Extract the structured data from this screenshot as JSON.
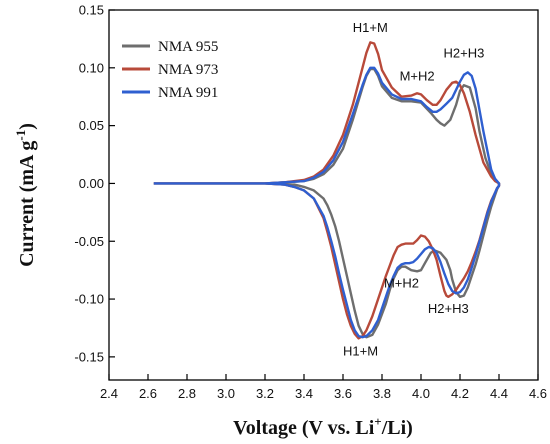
{
  "chart_data": {
    "type": "line",
    "xlabel": "Voltage (V vs. Li",
    "xlabel_sup": "+",
    "xlabel_tail": "/Li)",
    "ylabel": "Current (mA g",
    "ylabel_sup": "-1",
    "ylabel_tail": ")",
    "xlim": [
      2.4,
      4.6
    ],
    "ylim": [
      -0.17,
      0.15
    ],
    "x_ticks": [
      "2.4",
      "2.6",
      "2.8",
      "3.0",
      "3.2",
      "3.4",
      "3.6",
      "3.8",
      "4.0",
      "4.2",
      "4.4",
      "4.6"
    ],
    "y_ticks": [
      "0.15",
      "0.10",
      "0.05",
      "0.00",
      "-0.05",
      "-0.10",
      "-0.15"
    ],
    "grid": false,
    "legend_position": "top-left",
    "annotations": [
      {
        "text": "H1+M",
        "x": 3.74,
        "y": 0.131
      },
      {
        "text": "M+H2",
        "x": 3.98,
        "y": 0.089
      },
      {
        "text": "H2+H3",
        "x": 4.22,
        "y": 0.109
      },
      {
        "text": "M+H2",
        "x": 3.9,
        "y": -0.09
      },
      {
        "text": "H2+H3",
        "x": 4.14,
        "y": -0.112
      },
      {
        "text": "H1+M",
        "x": 3.69,
        "y": -0.149
      }
    ],
    "series": [
      {
        "name": "NMA 955",
        "color": "#6e6e6e",
        "x": [
          2.63,
          3.0,
          3.2,
          3.3,
          3.4,
          3.45,
          3.5,
          3.55,
          3.6,
          3.65,
          3.7,
          3.72,
          3.74,
          3.76,
          3.78,
          3.8,
          3.85,
          3.9,
          3.95,
          4.0,
          4.05,
          4.08,
          4.1,
          4.12,
          4.15,
          4.18,
          4.2,
          4.22,
          4.25,
          4.28,
          4.3,
          4.33,
          4.36,
          4.38,
          4.4,
          4.4,
          4.39,
          4.38,
          4.36,
          4.34,
          4.32,
          4.3,
          4.28,
          4.26,
          4.24,
          4.22,
          4.2,
          4.18,
          4.16,
          4.15,
          4.13,
          4.1,
          4.07,
          4.05,
          4.02,
          4.0,
          3.98,
          3.95,
          3.92,
          3.9,
          3.88,
          3.86,
          3.84,
          3.82,
          3.8,
          3.78,
          3.75,
          3.72,
          3.7,
          3.68,
          3.66,
          3.64,
          3.62,
          3.6,
          3.58,
          3.56,
          3.54,
          3.52,
          3.5,
          3.45,
          3.4,
          3.35,
          3.3,
          3.2,
          3.0,
          2.63
        ],
        "y": [
          0.0,
          0.0,
          0.0,
          0.001,
          0.002,
          0.004,
          0.008,
          0.016,
          0.03,
          0.055,
          0.083,
          0.093,
          0.099,
          0.099,
          0.093,
          0.084,
          0.074,
          0.071,
          0.071,
          0.07,
          0.061,
          0.055,
          0.052,
          0.05,
          0.055,
          0.068,
          0.08,
          0.085,
          0.083,
          0.065,
          0.045,
          0.022,
          0.008,
          0.003,
          0.0,
          -0.002,
          -0.005,
          -0.01,
          -0.02,
          -0.032,
          -0.045,
          -0.058,
          -0.07,
          -0.08,
          -0.09,
          -0.097,
          -0.098,
          -0.094,
          -0.083,
          -0.075,
          -0.066,
          -0.06,
          -0.058,
          -0.06,
          -0.069,
          -0.075,
          -0.076,
          -0.075,
          -0.072,
          -0.072,
          -0.075,
          -0.082,
          -0.092,
          -0.104,
          -0.113,
          -0.122,
          -0.131,
          -0.133,
          -0.13,
          -0.123,
          -0.11,
          -0.095,
          -0.08,
          -0.065,
          -0.05,
          -0.037,
          -0.027,
          -0.019,
          -0.013,
          -0.006,
          -0.003,
          -0.001,
          -0.001,
          0.0,
          0.0,
          0.0
        ]
      },
      {
        "name": "NMA 973",
        "color": "#b84a3a",
        "x": [
          2.63,
          3.0,
          3.2,
          3.3,
          3.4,
          3.45,
          3.5,
          3.55,
          3.6,
          3.65,
          3.7,
          3.72,
          3.74,
          3.76,
          3.78,
          3.8,
          3.85,
          3.9,
          3.95,
          3.98,
          4.0,
          4.03,
          4.06,
          4.08,
          4.1,
          4.13,
          4.16,
          4.18,
          4.2,
          4.22,
          4.25,
          4.28,
          4.32,
          4.36,
          4.38,
          4.4,
          4.4,
          4.39,
          4.38,
          4.36,
          4.34,
          4.32,
          4.3,
          4.28,
          4.26,
          4.24,
          4.22,
          4.2,
          4.18,
          4.16,
          4.14,
          4.13,
          4.12,
          4.1,
          4.08,
          4.06,
          4.04,
          4.02,
          4.0,
          3.98,
          3.96,
          3.94,
          3.92,
          3.9,
          3.88,
          3.86,
          3.84,
          3.82,
          3.8,
          3.78,
          3.75,
          3.72,
          3.7,
          3.68,
          3.66,
          3.64,
          3.62,
          3.6,
          3.58,
          3.56,
          3.54,
          3.52,
          3.5,
          3.45,
          3.4,
          3.35,
          3.3,
          3.2,
          3.0,
          2.63
        ],
        "y": [
          0.0,
          0.0,
          0.0,
          0.001,
          0.003,
          0.006,
          0.012,
          0.024,
          0.042,
          0.068,
          0.1,
          0.113,
          0.122,
          0.121,
          0.112,
          0.098,
          0.083,
          0.075,
          0.076,
          0.078,
          0.077,
          0.072,
          0.068,
          0.068,
          0.072,
          0.081,
          0.087,
          0.088,
          0.085,
          0.078,
          0.062,
          0.042,
          0.018,
          0.006,
          0.002,
          0.0,
          -0.002,
          -0.004,
          -0.008,
          -0.015,
          -0.025,
          -0.037,
          -0.049,
          -0.059,
          -0.068,
          -0.076,
          -0.082,
          -0.087,
          -0.092,
          -0.096,
          -0.098,
          -0.097,
          -0.093,
          -0.08,
          -0.066,
          -0.057,
          -0.05,
          -0.046,
          -0.045,
          -0.049,
          -0.052,
          -0.052,
          -0.052,
          -0.053,
          -0.055,
          -0.062,
          -0.071,
          -0.08,
          -0.09,
          -0.1,
          -0.115,
          -0.127,
          -0.132,
          -0.134,
          -0.13,
          -0.123,
          -0.113,
          -0.1,
          -0.085,
          -0.07,
          -0.055,
          -0.042,
          -0.03,
          -0.013,
          -0.006,
          -0.003,
          -0.001,
          0.0,
          0.0,
          0.0
        ]
      },
      {
        "name": "NMA 991",
        "color": "#2f5fd0",
        "x": [
          2.63,
          3.0,
          3.2,
          3.3,
          3.4,
          3.45,
          3.5,
          3.55,
          3.6,
          3.65,
          3.7,
          3.72,
          3.74,
          3.76,
          3.78,
          3.8,
          3.85,
          3.9,
          3.95,
          4.0,
          4.03,
          4.06,
          4.08,
          4.1,
          4.13,
          4.16,
          4.18,
          4.2,
          4.22,
          4.24,
          4.26,
          4.28,
          4.32,
          4.36,
          4.38,
          4.4,
          4.4,
          4.39,
          4.38,
          4.36,
          4.34,
          4.32,
          4.3,
          4.28,
          4.26,
          4.24,
          4.22,
          4.2,
          4.18,
          4.16,
          4.14,
          4.12,
          4.1,
          4.08,
          4.06,
          4.04,
          4.02,
          4.0,
          3.98,
          3.96,
          3.94,
          3.92,
          3.9,
          3.88,
          3.86,
          3.84,
          3.82,
          3.8,
          3.78,
          3.75,
          3.72,
          3.7,
          3.68,
          3.66,
          3.64,
          3.62,
          3.6,
          3.58,
          3.56,
          3.54,
          3.52,
          3.5,
          3.45,
          3.4,
          3.35,
          3.3,
          3.2,
          3.0,
          2.63
        ],
        "y": [
          0.0,
          0.0,
          0.0,
          0.001,
          0.002,
          0.005,
          0.01,
          0.02,
          0.036,
          0.06,
          0.085,
          0.094,
          0.1,
          0.1,
          0.095,
          0.087,
          0.077,
          0.073,
          0.073,
          0.071,
          0.066,
          0.062,
          0.062,
          0.064,
          0.069,
          0.074,
          0.081,
          0.088,
          0.094,
          0.096,
          0.093,
          0.082,
          0.045,
          0.012,
          0.004,
          0.0,
          -0.002,
          -0.004,
          -0.008,
          -0.016,
          -0.026,
          -0.038,
          -0.05,
          -0.062,
          -0.073,
          -0.083,
          -0.09,
          -0.094,
          -0.095,
          -0.093,
          -0.087,
          -0.078,
          -0.068,
          -0.06,
          -0.056,
          -0.055,
          -0.057,
          -0.061,
          -0.065,
          -0.068,
          -0.069,
          -0.069,
          -0.07,
          -0.073,
          -0.08,
          -0.088,
          -0.098,
          -0.108,
          -0.118,
          -0.127,
          -0.132,
          -0.133,
          -0.132,
          -0.127,
          -0.118,
          -0.105,
          -0.092,
          -0.078,
          -0.063,
          -0.05,
          -0.038,
          -0.028,
          -0.013,
          -0.006,
          -0.003,
          -0.001,
          0.0,
          0.0,
          0.0
        ]
      }
    ]
  }
}
